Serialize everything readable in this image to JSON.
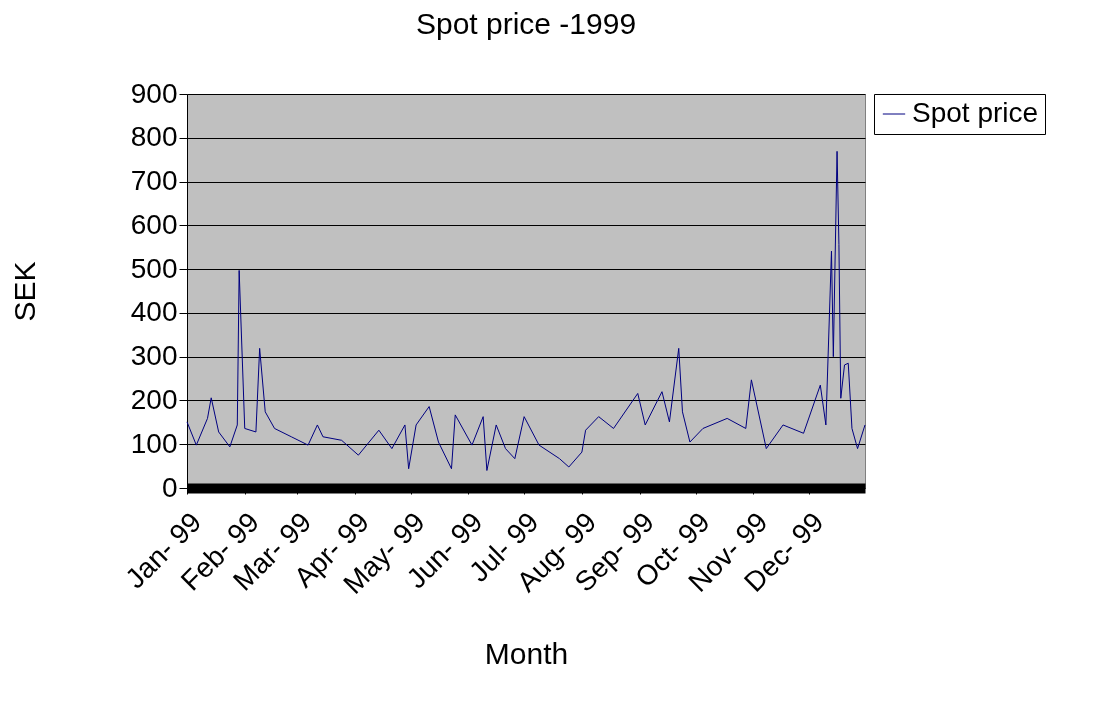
{
  "chart_data": {
    "type": "line",
    "title": "Spot price -1999",
    "xlabel": "Month",
    "ylabel": "SEK",
    "x": [
      "1999-01-01",
      "1999-01-06",
      "1999-01-12",
      "1999-01-14",
      "1999-01-18",
      "1999-01-24",
      "1999-01-28",
      "1999-01-29",
      "1999-02-01",
      "1999-02-07",
      "1999-02-09",
      "1999-02-12",
      "1999-02-17",
      "1999-02-26",
      "1999-03-07",
      "1999-03-12",
      "1999-03-15",
      "1999-03-25",
      "1999-04-03",
      "1999-04-14",
      "1999-04-21",
      "1999-04-28",
      "1999-04-30",
      "1999-05-04",
      "1999-05-11",
      "1999-05-16",
      "1999-05-23",
      "1999-05-25",
      "1999-06-03",
      "1999-06-09",
      "1999-06-11",
      "1999-06-16",
      "1999-06-21",
      "1999-06-26",
      "1999-07-01",
      "1999-07-09",
      "1999-07-20",
      "1999-07-25",
      "1999-08-01",
      "1999-08-03",
      "1999-08-10",
      "1999-08-18",
      "1999-08-31",
      "1999-09-04",
      "1999-09-13",
      "1999-09-17",
      "1999-09-22",
      "1999-09-24",
      "1999-09-28",
      "1999-10-05",
      "1999-10-18",
      "1999-10-28",
      "1999-10-31",
      "1999-11-08",
      "1999-11-17",
      "1999-11-28",
      "1999-12-07",
      "1999-12-10",
      "1999-12-13",
      "1999-12-14",
      "1999-12-16",
      "1999-12-17",
      "1999-12-18",
      "1999-12-20",
      "1999-12-22",
      "1999-12-24",
      "1999-12-27",
      "1999-12-31"
    ],
    "series": [
      {
        "name": "Spot price",
        "color": "#000080",
        "values": [
          151,
          98,
          159,
          206,
          128,
          94,
          144,
          497,
          136,
          128,
          319,
          174,
          136,
          117,
          98,
          144,
          117,
          109,
          75,
          132,
          90,
          144,
          44,
          144,
          186,
          105,
          44,
          167,
          98,
          163,
          40,
          144,
          90,
          67,
          163,
          98,
          67,
          48,
          82,
          132,
          163,
          136,
          216,
          144,
          220,
          151,
          319,
          174,
          105,
          136,
          159,
          136,
          247,
          90,
          144,
          125,
          235,
          144,
          541,
          300,
          769,
          556,
          205,
          281,
          285,
          136,
          90,
          144
        ]
      }
    ],
    "xlim": [
      "1999-01-01",
      "1999-12-31"
    ],
    "xticks": [
      {
        "value": "1999-01-01",
        "label": "Jan- 99"
      },
      {
        "value": "1999-02-01",
        "label": "Feb- 99"
      },
      {
        "value": "1999-03-01",
        "label": "Mar- 99"
      },
      {
        "value": "1999-04-01",
        "label": "Apr- 99"
      },
      {
        "value": "1999-05-01",
        "label": "May- 99"
      },
      {
        "value": "1999-06-01",
        "label": "Jun- 99"
      },
      {
        "value": "1999-07-01",
        "label": "Jul- 99"
      },
      {
        "value": "1999-08-01",
        "label": "Aug- 99"
      },
      {
        "value": "1999-09-01",
        "label": "Sep- 99"
      },
      {
        "value": "1999-10-01",
        "label": "Oct- 99"
      },
      {
        "value": "1999-11-01",
        "label": "Nov- 99"
      },
      {
        "value": "1999-12-01",
        "label": "Dec- 99"
      }
    ],
    "ylim": [
      0,
      900
    ],
    "yticks": [
      0,
      100,
      200,
      300,
      400,
      500,
      600,
      700,
      800,
      900
    ],
    "grid": "y",
    "legend": "right",
    "marker": "none",
    "line_style": "solid"
  }
}
